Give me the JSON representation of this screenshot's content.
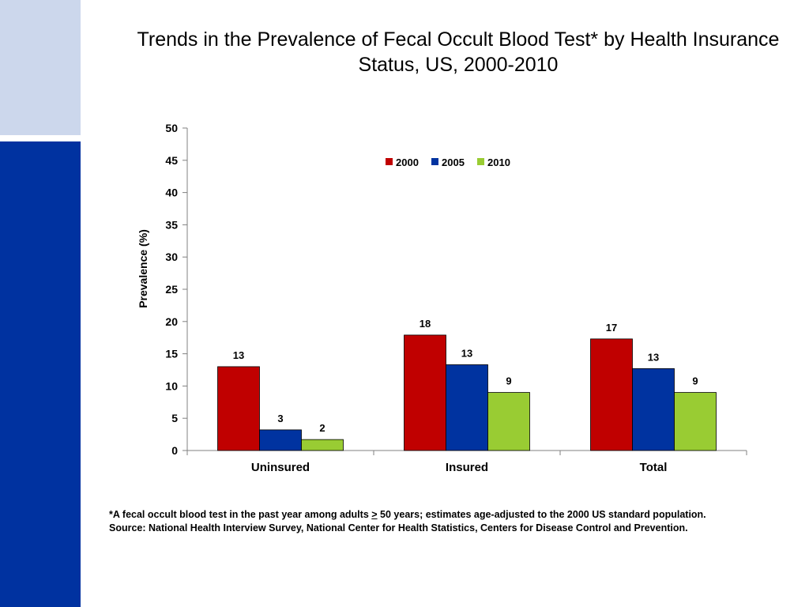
{
  "colors": {
    "sidebar_top": "#ccd7ec",
    "sidebar_bottom": "#0032a0"
  },
  "footnote": {
    "line1_prefix": "*A fecal occult blood test in the past year among adults ",
    "line1_symbol": ">",
    "line1_suffix": " 50 years; estimates age-adjusted to the 2000 US standard population.",
    "line2": "Source: National Health Interview Survey, National Center for Health Statistics, Centers for Disease Control and Prevention."
  },
  "chart_data": {
    "type": "bar",
    "title": "Trends in the Prevalence of Fecal Occult Blood Test* by Health Insurance Status, US, 2000-2010",
    "ylabel": "Prevalence (%)",
    "xlabel": "",
    "ylim": [
      0,
      50
    ],
    "yticks": [
      0,
      5,
      10,
      15,
      20,
      25,
      30,
      35,
      40,
      45,
      50
    ],
    "categories": [
      "Uninsured",
      "Insured",
      "Total"
    ],
    "series": [
      {
        "name": "2000",
        "color": "#c00000",
        "values": [
          13,
          17.9,
          17.3
        ],
        "labels": [
          "13",
          "18",
          "17"
        ]
      },
      {
        "name": "2005",
        "color": "#0033a0",
        "values": [
          3.2,
          13.3,
          12.7
        ],
        "labels": [
          "3",
          "13",
          "13"
        ]
      },
      {
        "name": "2010",
        "color": "#99cc33",
        "values": [
          1.7,
          9,
          9
        ],
        "labels": [
          "2",
          "9",
          "9"
        ]
      }
    ],
    "legend": "top-center",
    "grid": false
  }
}
